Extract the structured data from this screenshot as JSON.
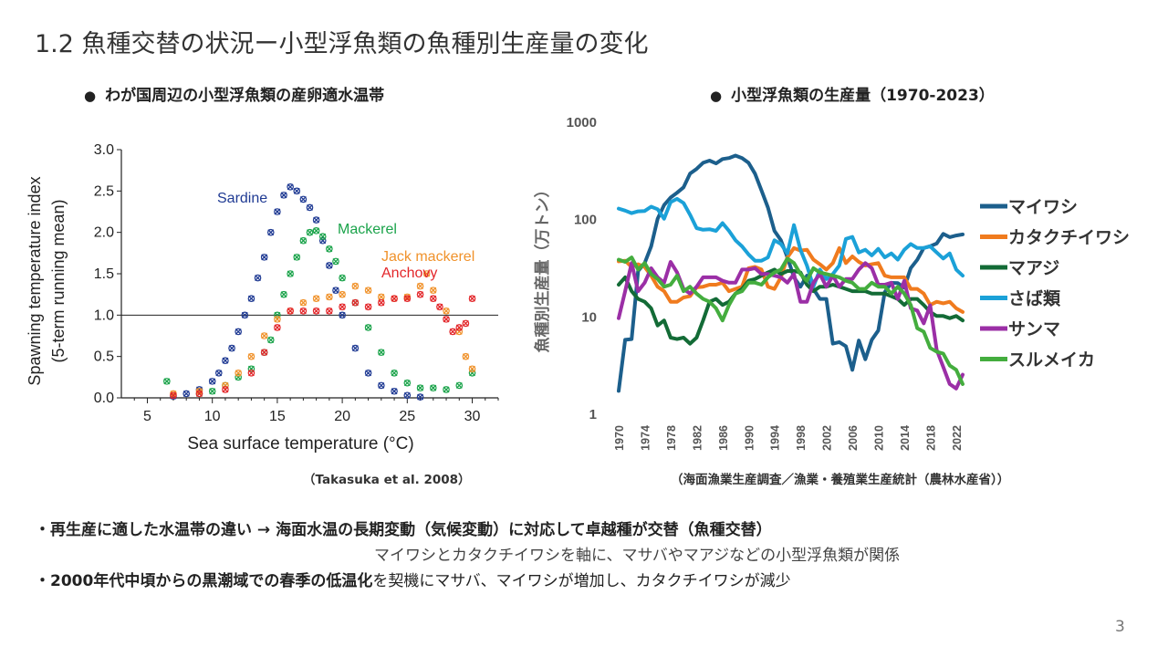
{
  "slide": {
    "title": "1.2 魚種交替の状況ー小型浮魚類の魚種別生産量の変化",
    "page_number": "3",
    "left_heading": "わが国周辺の小型浮魚類の産卵適水温帯",
    "right_heading": "小型浮魚類の生産量（1970-2023）",
    "left_source": "（Takasuka et al. 2008）",
    "right_source": "（海面漁業生産調査／漁業・養殖業生産統計（農林水産省））",
    "bullet1_bold": "再生産に適した水温帯の違い → 海面水温の長期変動（気候変動）に対応して卓越種が交替（魚種交替）",
    "bullet1_sub": "マイワシとカタクチイワシを軸に、マサバやマアジなどの小型浮魚類が関係",
    "bullet2_bold": "2000年代中頃からの黒潮域での春季の低温化",
    "bullet2_rest": "を契機にマサバ、マイワシが増加し、カタクチイワシが減少",
    "bullet_mark": "・"
  },
  "chart_data": [
    {
      "type": "scatter",
      "xlabel": "Sea surface temperature (°C)",
      "ylabel": "Spawning temperature index",
      "ylabel2": "(5-term running mean)",
      "xlim": [
        3,
        32
      ],
      "ylim": [
        0,
        3
      ],
      "xticks": [
        5,
        10,
        15,
        20,
        25,
        30
      ],
      "yticks": [
        "0.0",
        "0.5",
        "1.0",
        "1.5",
        "2.0",
        "2.5",
        "3.0"
      ],
      "reference_line": 1.0,
      "series": [
        {
          "name": "Sardine",
          "color": "#1f3a93",
          "x": [
            7,
            8,
            9,
            10,
            10.5,
            11,
            11.5,
            12,
            12.5,
            13,
            13.5,
            14,
            14.5,
            15,
            15.5,
            16,
            16.5,
            17,
            17.5,
            18,
            18.5,
            19,
            19.5,
            20,
            21,
            22,
            23,
            24,
            25,
            26
          ],
          "y": [
            0.02,
            0.05,
            0.1,
            0.2,
            0.3,
            0.45,
            0.6,
            0.8,
            1.0,
            1.2,
            1.45,
            1.7,
            2.0,
            2.25,
            2.45,
            2.55,
            2.5,
            2.4,
            2.3,
            2.15,
            1.9,
            1.6,
            1.3,
            1.0,
            0.6,
            0.3,
            0.15,
            0.08,
            0.03,
            0.01
          ]
        },
        {
          "name": "Mackerel",
          "color": "#1aa34a",
          "x": [
            6.5,
            9,
            10,
            11,
            12,
            13,
            14,
            14.5,
            15,
            15.5,
            16,
            16.5,
            17,
            17.5,
            18,
            18.5,
            19,
            19.5,
            20,
            21,
            22,
            23,
            24,
            25,
            26,
            27,
            28,
            29,
            30
          ],
          "y": [
            0.2,
            0.05,
            0.08,
            0.15,
            0.25,
            0.35,
            0.55,
            0.7,
            1.0,
            1.25,
            1.5,
            1.7,
            1.9,
            2.0,
            2.02,
            1.95,
            1.8,
            1.65,
            1.45,
            1.15,
            0.85,
            0.55,
            0.3,
            0.18,
            0.12,
            0.12,
            0.1,
            0.15,
            0.3
          ]
        },
        {
          "name": "Jack mackerel",
          "color": "#f0922b",
          "x": [
            7,
            9,
            11,
            12,
            13,
            14,
            15,
            16,
            17,
            18,
            19,
            20,
            21,
            22,
            23,
            24,
            25,
            26,
            26.5,
            27,
            28,
            29,
            29.5,
            30
          ],
          "y": [
            0.05,
            0.08,
            0.15,
            0.3,
            0.5,
            0.75,
            0.95,
            1.05,
            1.15,
            1.2,
            1.22,
            1.25,
            1.35,
            1.3,
            1.22,
            1.2,
            1.22,
            1.35,
            1.5,
            1.3,
            1.05,
            0.8,
            0.5,
            0.35
          ]
        },
        {
          "name": "Anchovy",
          "color": "#e3262a",
          "x": [
            7,
            9,
            11,
            13,
            14,
            15,
            16,
            17,
            18,
            19,
            20,
            21,
            22,
            23,
            24,
            25,
            26,
            27,
            27.5,
            28,
            28.5,
            29,
            29.5,
            30
          ],
          "y": [
            0.03,
            0.05,
            0.1,
            0.3,
            0.55,
            0.85,
            1.05,
            1.05,
            1.05,
            1.05,
            1.1,
            1.15,
            1.1,
            1.15,
            1.2,
            1.2,
            1.25,
            1.2,
            1.1,
            0.95,
            0.8,
            0.85,
            0.9,
            1.2
          ]
        }
      ]
    },
    {
      "type": "line",
      "ylabel": "魚種別生産量（万トン）",
      "ylim": [
        1,
        1000
      ],
      "log_scale": true,
      "yticks": [
        "1",
        "10",
        "100",
        "1000"
      ],
      "xticks": [
        "1970",
        "1974",
        "1978",
        "1982",
        "1986",
        "1990",
        "1994",
        "1998",
        "2002",
        "2006",
        "2010",
        "2014",
        "2018",
        "2022"
      ],
      "x": [
        1970,
        1971,
        1972,
        1973,
        1974,
        1975,
        1976,
        1977,
        1978,
        1979,
        1980,
        1981,
        1982,
        1983,
        1984,
        1985,
        1986,
        1987,
        1988,
        1989,
        1990,
        1991,
        1992,
        1993,
        1994,
        1995,
        1996,
        1997,
        1998,
        1999,
        2000,
        2001,
        2002,
        2003,
        2004,
        2005,
        2006,
        2007,
        2008,
        2009,
        2010,
        2011,
        2012,
        2013,
        2014,
        2015,
        2016,
        2017,
        2018,
        2019,
        2020,
        2021,
        2022,
        2023
      ],
      "legend_position": "right",
      "series": [
        {
          "name": "マイワシ",
          "color": "#1c5f8c",
          "values": [
            1.7,
            5.7,
            5.8,
            29,
            35,
            52,
            100,
            138,
            165,
            185,
            210,
            290,
            325,
            375,
            395,
            370,
            410,
            420,
            445,
            420,
            375,
            290,
            195,
            130,
            75,
            60,
            40,
            25,
            20,
            26,
            19,
            15,
            15,
            5.2,
            5.4,
            4.9,
            2.8,
            5.6,
            3.6,
            5.7,
            7.1,
            17.6,
            21.9,
            21.8,
            19.6,
            31.1,
            37.8,
            50,
            52.2,
            55.6,
            69.8,
            64.6,
            67.1,
            69
          ]
        },
        {
          "name": "カタクチイワシ",
          "color": "#f07b1e",
          "values": [
            36.5,
            37,
            32,
            34,
            32,
            26,
            20,
            18,
            14,
            14,
            15.5,
            16,
            19.7,
            20,
            21,
            21,
            22,
            18,
            19,
            20,
            31,
            32,
            30,
            20,
            19,
            25,
            40,
            50,
            47,
            48,
            38,
            34,
            30,
            35,
            50,
            35,
            41,
            36,
            33,
            34,
            35,
            26,
            25,
            25,
            25,
            19,
            19,
            17,
            13,
            14,
            13.5,
            14,
            12,
            11
          ]
        },
        {
          "name": "マアジ",
          "color": "#136b36",
          "values": [
            21,
            25,
            18,
            15,
            14,
            12,
            8,
            9,
            6,
            5.8,
            6,
            5.2,
            6,
            9,
            14,
            15,
            13,
            14,
            17,
            19,
            23,
            24,
            26,
            28,
            30,
            27,
            29,
            29,
            28,
            21,
            18,
            20,
            20,
            21,
            20,
            19,
            18,
            18,
            18,
            17,
            17,
            17,
            16,
            15,
            13,
            15,
            15,
            13,
            11,
            10,
            10,
            9.5,
            10,
            9
          ]
        },
        {
          "name": "さば類",
          "color": "#1ba1d8",
          "values": [
            127,
            121,
            114,
            119,
            120,
            133,
            125,
            100,
            148,
            160,
            145,
            110,
            80,
            77,
            78,
            75,
            90,
            75,
            60,
            52,
            43,
            37,
            37,
            40,
            60,
            55,
            44,
            86,
            48,
            33,
            20,
            30,
            24,
            27,
            33,
            62,
            65,
            45,
            48,
            42,
            49,
            40,
            44,
            38,
            48,
            55,
            50,
            50,
            52,
            45,
            39,
            44,
            30,
            26
          ]
        },
        {
          "name": "サンマ",
          "color": "#9b2fa6",
          "values": [
            9.5,
            18,
            35,
            18,
            22,
            31,
            25,
            22,
            36,
            28,
            19,
            17,
            20,
            25,
            25,
            25,
            23,
            22,
            22,
            30,
            30,
            31,
            27,
            27,
            26,
            25,
            22,
            27,
            14,
            14,
            22,
            27,
            20,
            26,
            20,
            24,
            24,
            30,
            35,
            31,
            21,
            21,
            22,
            15,
            23,
            12,
            11.4,
            8.4,
            12.9,
            4.5,
            3,
            2,
            1.8,
            2.5
          ]
        },
        {
          "name": "スルメイカ",
          "color": "#44ad3e",
          "values": [
            38,
            36,
            40,
            30,
            35,
            27,
            24,
            20,
            21,
            26,
            18,
            20,
            17,
            15,
            14,
            12,
            9,
            13,
            17,
            18,
            22,
            22,
            21,
            25,
            28,
            30,
            39,
            35,
            27,
            23,
            31,
            28,
            27,
            26,
            25,
            23,
            22,
            19,
            19,
            22,
            20,
            20,
            17,
            20,
            17,
            13,
            7.5,
            6.9,
            4.7,
            4.3,
            4.1,
            3.1,
            2.8,
            2
          ]
        }
      ]
    }
  ]
}
